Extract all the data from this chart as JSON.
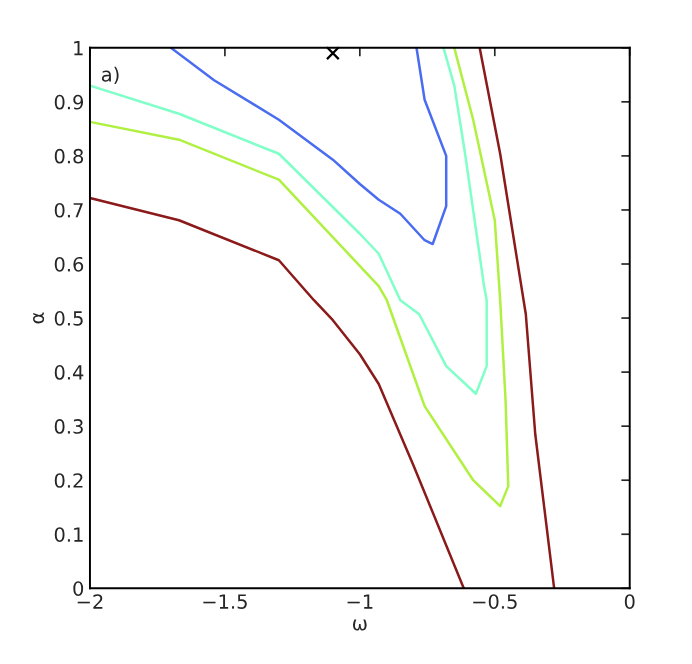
{
  "chart_data": {
    "type": "line",
    "xlabel": "ω",
    "ylabel": "α",
    "annotations": [
      "a)"
    ],
    "xlim": [
      -2,
      0
    ],
    "ylim": [
      0,
      1
    ],
    "xticks": [
      {
        "value": -2,
        "label": "−2"
      },
      {
        "value": -1.5,
        "label": "−1.5"
      },
      {
        "value": -1,
        "label": "−1"
      },
      {
        "value": -0.5,
        "label": "−0.5"
      },
      0
    ],
    "yticks": [
      0,
      0.1,
      0.2,
      0.3,
      0.4,
      0.5,
      0.6,
      0.7,
      0.8,
      0.9,
      1
    ],
    "grid": false,
    "legend": false,
    "marker": "none",
    "line_style": "solid",
    "series": [
      {
        "color": "#4a6cf0",
        "x": [
          -1.7,
          -1.54,
          -1.3,
          -1.1,
          -1.0,
          -0.93,
          -0.85,
          -0.76,
          -0.73,
          -0.68,
          -0.68,
          -0.76,
          -0.79
        ],
        "values": [
          1.0,
          0.94,
          0.867,
          0.793,
          0.748,
          0.719,
          0.693,
          0.644,
          0.637,
          0.707,
          0.8,
          0.904,
          1.0
        ]
      },
      {
        "color": "#80ffc8",
        "x": [
          -2.0,
          -1.67,
          -1.3,
          -1.0,
          -0.93,
          -0.85,
          -0.78,
          -0.68,
          -0.57,
          -0.53,
          -0.53,
          -0.54,
          -0.61,
          -0.65,
          -0.69
        ],
        "values": [
          0.93,
          0.878,
          0.804,
          0.656,
          0.619,
          0.533,
          0.507,
          0.411,
          0.36,
          0.411,
          0.533,
          0.56,
          0.804,
          0.93,
          1.0
        ]
      },
      {
        "color": "#b0f040",
        "x": [
          -2.0,
          -1.67,
          -1.3,
          -0.93,
          -0.9,
          -0.76,
          -0.58,
          -0.48,
          -0.45,
          -0.46,
          -0.48,
          -0.5,
          -0.58,
          -0.65
        ],
        "values": [
          0.863,
          0.83,
          0.756,
          0.559,
          0.533,
          0.337,
          0.2,
          0.152,
          0.189,
          0.348,
          0.533,
          0.681,
          0.867,
          1.0
        ]
      },
      {
        "color": "#8b1a1a",
        "x": [
          -2.0,
          -1.67,
          -1.3,
          -1.17,
          -1.1,
          -1.0,
          -0.93,
          -0.8,
          -0.615
        ],
        "values": [
          0.722,
          0.681,
          0.607,
          0.533,
          0.496,
          0.433,
          0.378,
          0.226,
          0.0
        ]
      },
      {
        "color": "#8b1a1a",
        "x": [
          -0.556,
          -0.48,
          -0.385,
          -0.35,
          -0.28
        ],
        "values": [
          1.0,
          0.804,
          0.507,
          0.285,
          0.0
        ]
      },
      {
        "type": "scatter",
        "marker": "cross",
        "color": "#000000",
        "x": [
          -1.1
        ],
        "values": [
          0.99
        ]
      }
    ]
  }
}
